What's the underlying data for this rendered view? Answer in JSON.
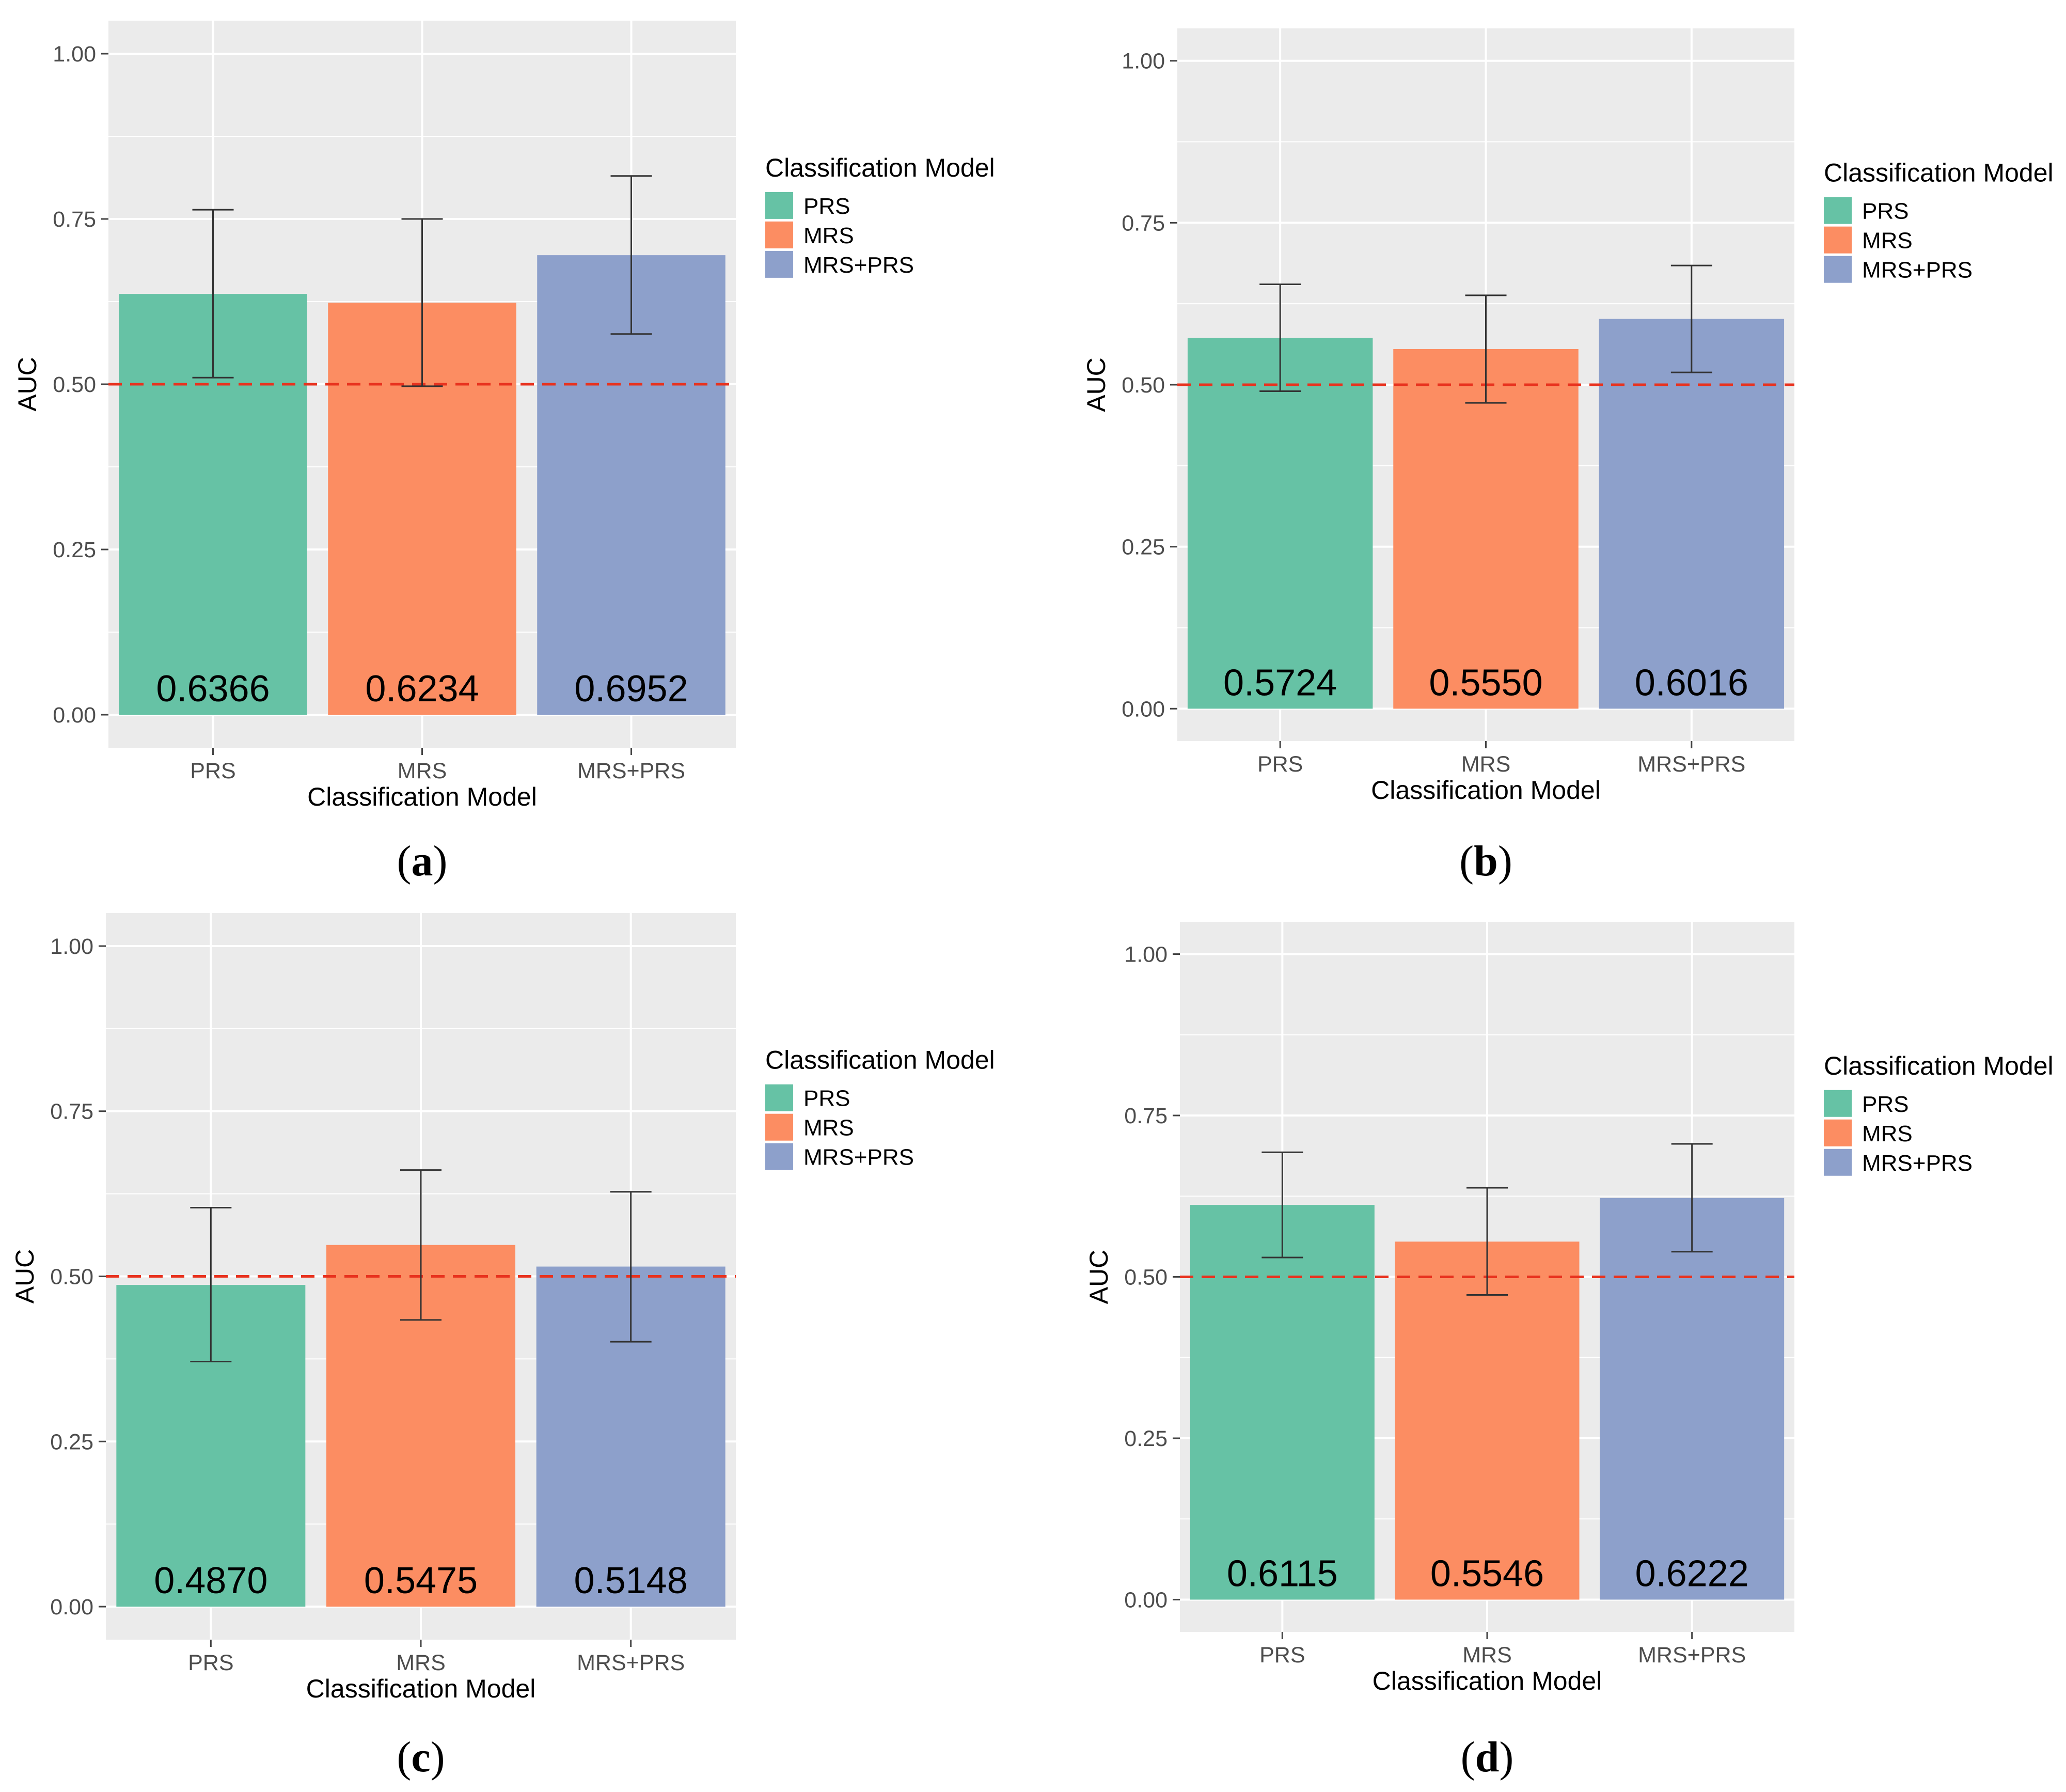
{
  "colors": {
    "PRS": "#66c2a5",
    "MRS": "#fc8d62",
    "MRS+PRS": "#8da0cb",
    "panel_bg": "#ebebeb",
    "grid": "#ffffff",
    "reference_line": "#e8321e",
    "error_bar": "#333333"
  },
  "chart_data": [
    {
      "panel_label": "a",
      "type": "bar",
      "categories": [
        "PRS",
        "MRS",
        "MRS+PRS"
      ],
      "values": [
        0.6366,
        0.6234,
        0.6952
      ],
      "data_labels": [
        "0.6366",
        "0.6234",
        "0.6952"
      ],
      "error_low": [
        0.51,
        0.497,
        0.576
      ],
      "error_high": [
        0.764,
        0.75,
        0.815
      ],
      "xlabel": "Classification Model",
      "ylabel": "AUC",
      "ylim": [
        -0.05,
        1.05
      ],
      "yticks": [
        0,
        0.25,
        0.5,
        0.75,
        1
      ],
      "ytick_labels": [
        "0.00",
        "0.25",
        "0.50",
        "0.75",
        "1.00"
      ],
      "reference_line": 0.5,
      "grid": true,
      "legend": {
        "title": "Classification Model",
        "entries": [
          "PRS",
          "MRS",
          "MRS+PRS"
        ],
        "position": "right"
      }
    },
    {
      "panel_label": "b",
      "type": "bar",
      "categories": [
        "PRS",
        "MRS",
        "MRS+PRS"
      ],
      "values": [
        0.5724,
        0.555,
        0.6016
      ],
      "data_labels": [
        "0.5724",
        "0.5550",
        "0.6016"
      ],
      "error_low": [
        0.49,
        0.472,
        0.519
      ],
      "error_high": [
        0.655,
        0.638,
        0.684
      ],
      "xlabel": "Classification Model",
      "ylabel": "AUC",
      "ylim": [
        -0.05,
        1.05
      ],
      "yticks": [
        0,
        0.25,
        0.5,
        0.75,
        1
      ],
      "ytick_labels": [
        "0.00",
        "0.25",
        "0.50",
        "0.75",
        "1.00"
      ],
      "reference_line": 0.5,
      "grid": true,
      "legend": {
        "title": "Classification Model",
        "entries": [
          "PRS",
          "MRS",
          "MRS+PRS"
        ],
        "position": "right"
      }
    },
    {
      "panel_label": "c",
      "type": "bar",
      "categories": [
        "PRS",
        "MRS",
        "MRS+PRS"
      ],
      "values": [
        0.487,
        0.5475,
        0.5148
      ],
      "data_labels": [
        "0.4870",
        "0.5475",
        "0.5148"
      ],
      "error_low": [
        0.371,
        0.434,
        0.401
      ],
      "error_high": [
        0.604,
        0.661,
        0.628
      ],
      "xlabel": "Classification Model",
      "ylabel": "AUC",
      "ylim": [
        -0.05,
        1.05
      ],
      "yticks": [
        0,
        0.25,
        0.5,
        0.75,
        1
      ],
      "ytick_labels": [
        "0.00",
        "0.25",
        "0.50",
        "0.75",
        "1.00"
      ],
      "reference_line": 0.5,
      "grid": true,
      "legend": {
        "title": "Classification Model",
        "entries": [
          "PRS",
          "MRS",
          "MRS+PRS"
        ],
        "position": "right"
      }
    },
    {
      "panel_label": "d",
      "type": "bar",
      "categories": [
        "PRS",
        "MRS",
        "MRS+PRS"
      ],
      "values": [
        0.6115,
        0.5546,
        0.6222
      ],
      "data_labels": [
        "0.6115",
        "0.5546",
        "0.6222"
      ],
      "error_low": [
        0.53,
        0.472,
        0.539
      ],
      "error_high": [
        0.693,
        0.638,
        0.706
      ],
      "xlabel": "Classification Model",
      "ylabel": "AUC",
      "ylim": [
        -0.05,
        1.05
      ],
      "yticks": [
        0,
        0.25,
        0.5,
        0.75,
        1
      ],
      "ytick_labels": [
        "0.00",
        "0.25",
        "0.50",
        "0.75",
        "1.00"
      ],
      "reference_line": 0.5,
      "grid": true,
      "legend": {
        "title": "Classification Model",
        "entries": [
          "PRS",
          "MRS",
          "MRS+PRS"
        ],
        "position": "right"
      }
    }
  ]
}
